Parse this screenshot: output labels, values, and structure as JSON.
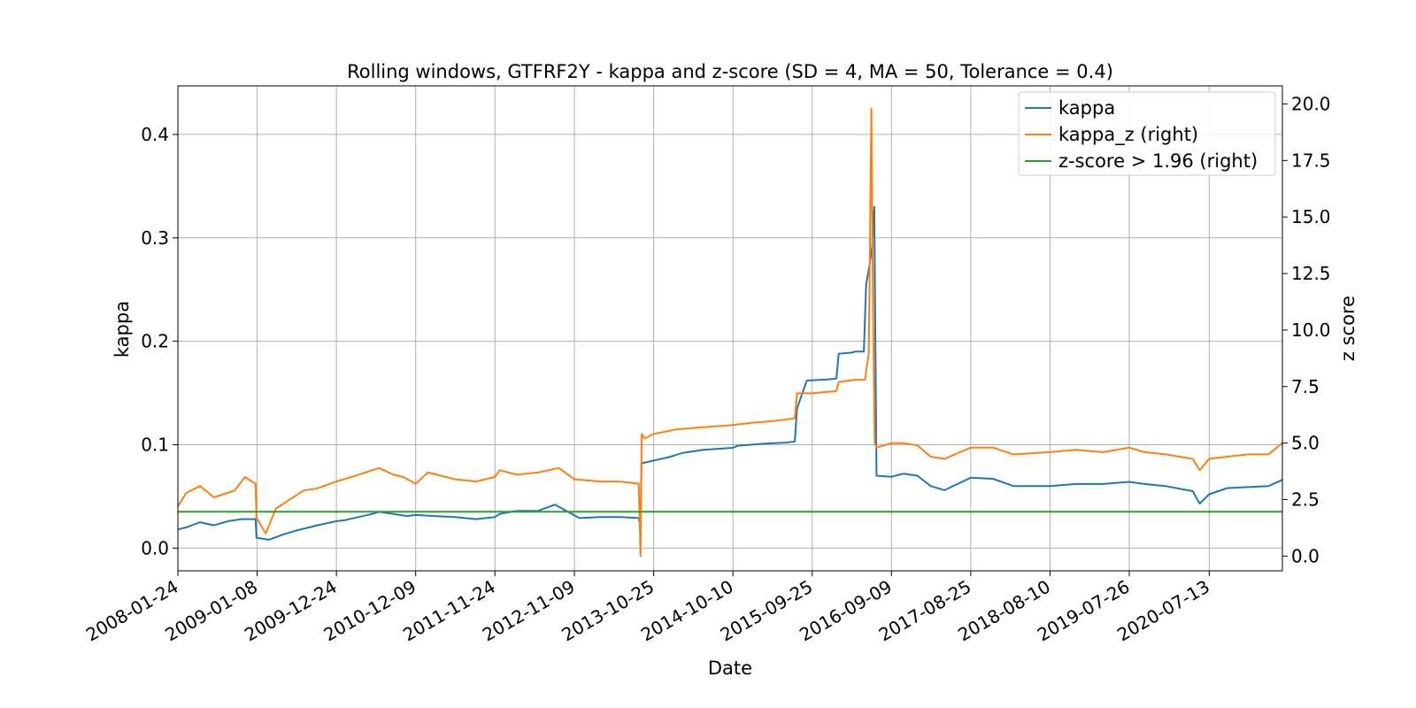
{
  "chart_data": {
    "type": "line",
    "title": "Rolling windows, GTFRF2Y - kappa and z-score (SD = 4, MA = 50, Tolerance  = 0.4)",
    "xlabel": "Date",
    "ylabel": "kappa",
    "ylabel_right": "z score",
    "grid": true,
    "legend_position": "top-right",
    "x_tick_labels": [
      "2008-01-24",
      "2009-01-08",
      "2009-12-24",
      "2010-12-09",
      "2011-11-24",
      "2012-11-09",
      "2013-10-25",
      "2014-10-10",
      "2015-09-25",
      "2016-09-09",
      "2017-08-25",
      "2018-08-10",
      "2019-07-26",
      "2020-07-13"
    ],
    "xlim": [
      "2008-01-24",
      "2021-06-01"
    ],
    "ylim_left": [
      -0.022,
      0.447
    ],
    "ylim_right": [
      -0.65,
      20.8
    ],
    "y_ticks_left": [
      0.0,
      0.1,
      0.2,
      0.3,
      0.4
    ],
    "y_tick_labels_left": [
      "0.0",
      "0.1",
      "0.2",
      "0.3",
      "0.4"
    ],
    "y_ticks_right": [
      0.0,
      2.5,
      5.0,
      7.5,
      10.0,
      12.5,
      15.0,
      17.5,
      20.0
    ],
    "y_tick_labels_right": [
      "0.0",
      "2.5",
      "5.0",
      "7.5",
      "10.0",
      "12.5",
      "15.0",
      "17.5",
      "20.0"
    ],
    "series": [
      {
        "name": "kappa",
        "axis": "left",
        "color": "#1f77b4",
        "x": [
          "2008-01-24",
          "2008-03-01",
          "2008-05-01",
          "2008-07-01",
          "2008-09-01",
          "2008-11-01",
          "2009-01-01",
          "2009-01-05",
          "2009-03-01",
          "2009-05-01",
          "2009-07-01",
          "2009-10-01",
          "2009-12-24",
          "2010-02-01",
          "2010-04-01",
          "2010-06-01",
          "2010-07-01",
          "2010-09-01",
          "2010-11-01",
          "2010-12-09",
          "2011-03-01",
          "2011-06-01",
          "2011-09-01",
          "2011-11-24",
          "2011-12-15",
          "2012-03-01",
          "2012-06-01",
          "2012-08-15",
          "2012-09-01",
          "2012-12-01",
          "2013-03-01",
          "2013-06-01",
          "2013-08-20",
          "2013-08-28",
          "2013-09-01",
          "2013-11-01",
          "2014-01-01",
          "2014-03-01",
          "2014-06-01",
          "2014-10-10",
          "2014-11-01",
          "2015-03-01",
          "2015-06-01",
          "2015-07-10",
          "2015-07-20",
          "2015-09-01",
          "2015-12-01",
          "2016-01-10",
          "2016-01-20",
          "2016-03-15",
          "2016-04-01",
          "2016-05-10",
          "2016-05-20",
          "2016-06-05",
          "2016-06-15",
          "2016-06-25",
          "2016-07-05",
          "2016-09-09",
          "2016-11-01",
          "2017-01-01",
          "2017-03-01",
          "2017-05-01",
          "2017-08-25",
          "2017-12-01",
          "2018-03-01",
          "2018-08-10",
          "2018-12-01",
          "2019-04-01",
          "2019-07-26",
          "2019-10-01",
          "2020-01-01",
          "2020-05-01",
          "2020-06-01",
          "2020-07-13",
          "2020-10-01",
          "2021-01-01",
          "2021-04-01",
          "2021-06-01"
        ],
        "values": [
          0.018,
          0.02,
          0.025,
          0.022,
          0.026,
          0.028,
          0.028,
          0.01,
          0.008,
          0.013,
          0.017,
          0.022,
          0.026,
          0.027,
          0.03,
          0.033,
          0.035,
          0.033,
          0.031,
          0.032,
          0.031,
          0.03,
          0.028,
          0.03,
          0.033,
          0.036,
          0.036,
          0.042,
          0.04,
          0.029,
          0.03,
          0.03,
          0.029,
          0.02,
          0.082,
          0.085,
          0.088,
          0.092,
          0.095,
          0.097,
          0.099,
          0.101,
          0.102,
          0.103,
          0.135,
          0.162,
          0.163,
          0.164,
          0.188,
          0.189,
          0.19,
          0.19,
          0.255,
          0.275,
          0.29,
          0.33,
          0.07,
          0.069,
          0.072,
          0.07,
          0.06,
          0.056,
          0.068,
          0.067,
          0.06,
          0.06,
          0.062,
          0.062,
          0.064,
          0.062,
          0.06,
          0.055,
          0.043,
          0.052,
          0.058,
          0.059,
          0.06,
          0.066
        ]
      },
      {
        "name": "kappa_z (right)",
        "axis": "right",
        "color": "#ff7f0e",
        "x": [
          "2008-01-24",
          "2008-03-01",
          "2008-05-01",
          "2008-07-01",
          "2008-10-01",
          "2008-11-15",
          "2009-01-01",
          "2009-01-05",
          "2009-02-15",
          "2009-04-01",
          "2009-06-01",
          "2009-08-01",
          "2009-10-01",
          "2009-12-24",
          "2010-03-01",
          "2010-06-01",
          "2010-07-01",
          "2010-09-01",
          "2010-10-15",
          "2010-12-09",
          "2011-02-01",
          "2011-06-01",
          "2011-09-01",
          "2011-11-24",
          "2011-12-15",
          "2012-03-01",
          "2012-06-01",
          "2012-09-01",
          "2012-11-09",
          "2013-03-01",
          "2013-06-01",
          "2013-08-20",
          "2013-08-28",
          "2013-09-02",
          "2013-09-15",
          "2013-10-25",
          "2014-02-01",
          "2014-06-01",
          "2014-10-10",
          "2015-01-01",
          "2015-05-01",
          "2015-07-10",
          "2015-07-20",
          "2015-09-25",
          "2016-01-10",
          "2016-01-20",
          "2016-04-01",
          "2016-05-15",
          "2016-06-01",
          "2016-06-12",
          "2016-06-20",
          "2016-06-27",
          "2016-07-05",
          "2016-09-09",
          "2016-11-01",
          "2017-01-01",
          "2017-03-01",
          "2017-05-01",
          "2017-08-25",
          "2017-12-01",
          "2018-03-01",
          "2018-08-10",
          "2018-12-01",
          "2019-04-01",
          "2019-07-26",
          "2019-10-01",
          "2020-01-01",
          "2020-05-01",
          "2020-06-01",
          "2020-07-13",
          "2020-10-01",
          "2021-01-01",
          "2021-04-01",
          "2021-06-01"
        ],
        "values": [
          2.2,
          2.8,
          3.1,
          2.6,
          2.9,
          3.5,
          3.2,
          1.7,
          1.0,
          2.1,
          2.5,
          2.9,
          3.0,
          3.3,
          3.5,
          3.8,
          3.9,
          3.6,
          3.5,
          3.2,
          3.7,
          3.4,
          3.3,
          3.5,
          3.8,
          3.6,
          3.7,
          3.9,
          3.4,
          3.3,
          3.3,
          3.2,
          0.0,
          5.4,
          5.2,
          5.4,
          5.6,
          5.7,
          5.8,
          5.9,
          6.0,
          6.1,
          7.2,
          7.2,
          7.3,
          7.7,
          7.8,
          7.8,
          9.0,
          19.8,
          10.5,
          5.0,
          4.8,
          5.0,
          5.0,
          4.9,
          4.4,
          4.3,
          4.8,
          4.8,
          4.5,
          4.6,
          4.7,
          4.6,
          4.8,
          4.6,
          4.5,
          4.3,
          3.8,
          4.3,
          4.4,
          4.5,
          4.5,
          5.0
        ]
      },
      {
        "name": "z-score > 1.96 (right)",
        "axis": "right",
        "color": "#2ca02c",
        "x": [
          "2008-01-24",
          "2021-06-01"
        ],
        "values": [
          1.96,
          1.96
        ]
      }
    ]
  }
}
